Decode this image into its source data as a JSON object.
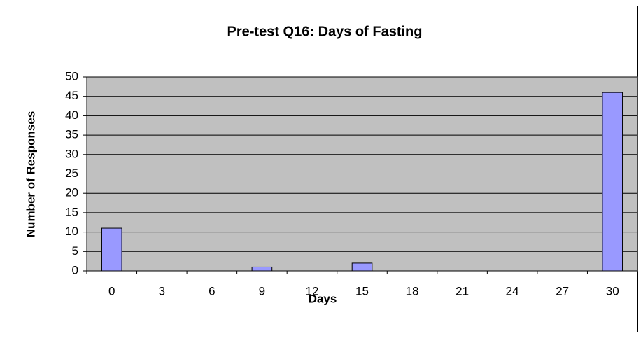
{
  "chart_data": {
    "type": "bar",
    "title": "Pre-test Q16: Days of Fasting",
    "x_label": "Days",
    "y_label": "Number of Responses",
    "categories": [
      "0",
      "3",
      "6",
      "9",
      "12",
      "15",
      "18",
      "21",
      "24",
      "27",
      "30"
    ],
    "values": [
      11,
      0,
      0,
      1,
      0,
      2,
      0,
      0,
      0,
      0,
      46
    ],
    "color": "#9999ff",
    "plot_background": "#c0c0c0",
    "ylim": [
      0,
      50
    ],
    "yticks": [
      0,
      5,
      10,
      15,
      20,
      25,
      30,
      35,
      40,
      45,
      50
    ],
    "grid": true
  }
}
